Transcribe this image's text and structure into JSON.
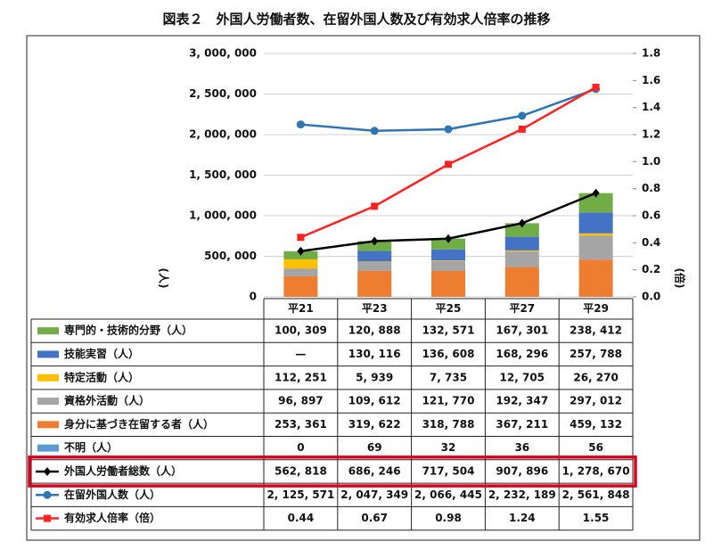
{
  "chart_data": {
    "type": "bar",
    "title": "図表２　外国人労働者数、在留外国人数及び有効求人倍率の推移",
    "y_label": "(人)",
    "y2_label": "(倍)",
    "categories": [
      "平21",
      "平23",
      "平25",
      "平27",
      "平29"
    ],
    "ylim": [
      0,
      3000000
    ],
    "yticks": [
      0,
      {
        "value": 500000,
        "label": "500, 000"
      },
      {
        "value": 1000000,
        "label": "1, 000, 000"
      },
      {
        "value": 1500000,
        "label": "1, 500, 000"
      },
      {
        "value": 2000000,
        "label": "2, 000, 000"
      },
      {
        "value": 2500000,
        "label": "2, 500, 000"
      },
      {
        "value": 3000000,
        "label": "3, 000, 000"
      }
    ],
    "y2lim": [
      0,
      1.8
    ],
    "y2ticks": [
      {
        "value": 0,
        "label": "0.0"
      },
      0.2,
      0.4,
      0.6,
      0.8,
      {
        "value": 1,
        "label": "1.0"
      },
      1.2,
      1.4,
      1.6,
      1.8
    ],
    "grid": true,
    "series": [
      {
        "name": "専門的・技術的分野（人）",
        "color": "#70ad47",
        "values": [
          100309,
          120888,
          132571,
          167301,
          238412
        ],
        "value_labels": [
          "100, 309",
          "120, 888",
          "132, 571",
          "167, 301",
          "238, 412"
        ]
      },
      {
        "name": "技能実習（人）",
        "color": "#4472c4",
        "values": [
          null,
          130116,
          136608,
          168296,
          257788
        ],
        "value_labels": [
          "—",
          "130, 116",
          "136, 608",
          "168, 296",
          "257, 788"
        ]
      },
      {
        "name": "特定活動（人）",
        "color": "#ffc000",
        "values": [
          112251,
          5939,
          7735,
          12705,
          26270
        ],
        "value_labels": [
          "112, 251",
          "5, 939",
          "7, 735",
          "12, 705",
          "26, 270"
        ]
      },
      {
        "name": "資格外活動（人）",
        "color": "#a5a5a5",
        "values": [
          96897,
          109612,
          121770,
          192347,
          297012
        ],
        "value_labels": [
          "96, 897",
          "109, 612",
          "121, 770",
          "192, 347",
          "297, 012"
        ]
      },
      {
        "name": "身分に基づき在留する者（人）",
        "color": "#ed7d31",
        "values": [
          253361,
          319622,
          318788,
          367211,
          459132
        ],
        "value_labels": [
          "253, 361",
          "319, 622",
          "318, 788",
          "367, 211",
          "459, 132"
        ]
      },
      {
        "name": "不明（人）",
        "color": "#5b9bd5",
        "values": [
          0,
          69,
          32,
          36,
          56
        ]
      },
      {
        "name": "外国人労働者総数（人）",
        "type": "line",
        "marker": "diamond",
        "color": "#000000",
        "highlight": "#e0001b",
        "values": [
          562818,
          686246,
          717504,
          907896,
          1278670
        ],
        "value_labels": [
          "562, 818",
          "686, 246",
          "717, 504",
          "907, 896",
          "1, 278, 670"
        ]
      },
      {
        "name": "在留外国人数（人）",
        "type": "line",
        "marker": "circle",
        "color": "#2e75b6",
        "values": [
          2125571,
          2047349,
          2066445,
          2232189,
          2561848
        ],
        "value_labels": [
          "2, 125, 571",
          "2, 047, 349",
          "2, 066, 445",
          "2, 232, 189",
          "2, 561, 848"
        ]
      },
      {
        "name": "有効求人倍率（倍）",
        "type": "line",
        "marker": "square",
        "axis": "y2",
        "color": "#ff2020",
        "values": [
          0.44,
          0.67,
          0.98,
          1.24,
          1.55
        ]
      }
    ]
  }
}
